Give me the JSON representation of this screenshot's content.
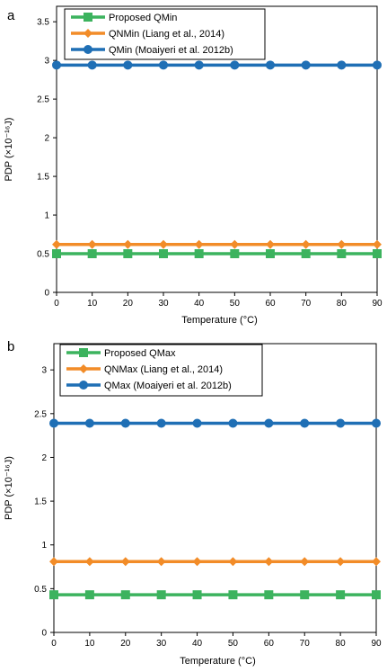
{
  "chart_data": [
    {
      "panel_label": "a",
      "type": "line",
      "xlabel": "Temperature (°C)",
      "ylabel": "PDP (×10⁻¹⁶J)",
      "x": [
        0,
        10,
        20,
        30,
        40,
        50,
        60,
        70,
        80,
        90
      ],
      "xlim": [
        0,
        90
      ],
      "ylim": [
        0,
        3.7
      ],
      "yticks": [
        "0",
        "0.5",
        "1",
        "1.5",
        "2",
        "2.5",
        "3",
        "3.5"
      ],
      "xticks": [
        "0",
        "10",
        "20",
        "30",
        "40",
        "50",
        "60",
        "70",
        "80",
        "90"
      ],
      "grid": false,
      "legend_position": "top-left",
      "series": [
        {
          "name": "Proposed QMin",
          "color": "#3cb35e",
          "marker": "square",
          "values": [
            0.5,
            0.5,
            0.5,
            0.5,
            0.5,
            0.5,
            0.5,
            0.5,
            0.5,
            0.5
          ]
        },
        {
          "name": "QNMin (Liang et al., 2014)",
          "color": "#f28c28",
          "marker": "diamond",
          "values": [
            0.62,
            0.62,
            0.62,
            0.62,
            0.62,
            0.62,
            0.62,
            0.62,
            0.62,
            0.62
          ]
        },
        {
          "name": "QMin (Moaiyeri et al. 2012b)",
          "color": "#1f6fb5",
          "marker": "circle",
          "values": [
            2.94,
            2.94,
            2.94,
            2.94,
            2.94,
            2.94,
            2.94,
            2.94,
            2.94,
            2.94
          ]
        }
      ]
    },
    {
      "panel_label": "b",
      "type": "line",
      "xlabel": "Temperature (°C)",
      "ylabel": "PDP (×10⁻¹⁶J)",
      "x": [
        0,
        10,
        20,
        30,
        40,
        50,
        60,
        70,
        80,
        90
      ],
      "xlim": [
        0,
        90
      ],
      "ylim": [
        0,
        3.3
      ],
      "yticks": [
        "0",
        "0.5",
        "1",
        "1.5",
        "2",
        "2.5",
        "3"
      ],
      "xticks": [
        "0",
        "10",
        "20",
        "30",
        "40",
        "50",
        "60",
        "70",
        "80",
        "90"
      ],
      "grid": false,
      "legend_position": "top-left",
      "series": [
        {
          "name": "Proposed QMax",
          "color": "#3cb35e",
          "marker": "square",
          "values": [
            0.43,
            0.43,
            0.43,
            0.43,
            0.43,
            0.43,
            0.43,
            0.43,
            0.43,
            0.43
          ]
        },
        {
          "name": "QNMax (Liang et al., 2014)",
          "color": "#f28c28",
          "marker": "diamond",
          "values": [
            0.81,
            0.81,
            0.81,
            0.81,
            0.81,
            0.81,
            0.81,
            0.81,
            0.81,
            0.81
          ]
        },
        {
          "name": "QMax (Moaiyeri et al. 2012b)",
          "color": "#1f6fb5",
          "marker": "circle",
          "values": [
            2.39,
            2.39,
            2.39,
            2.39,
            2.39,
            2.39,
            2.39,
            2.39,
            2.39,
            2.39
          ]
        }
      ]
    }
  ]
}
